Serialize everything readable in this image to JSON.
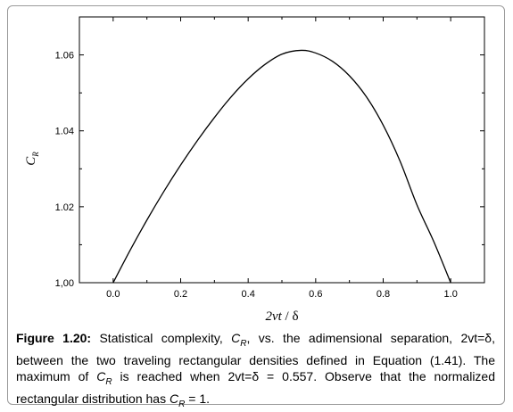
{
  "chart_data": {
    "type": "line",
    "title": "",
    "xlabel_main": "2vt",
    "xlabel_sep": " / ",
    "xlabel_delta": "δ",
    "ylabel_main": "C",
    "ylabel_sub": "R",
    "xlim": [
      -0.1,
      1.1
    ],
    "ylim": [
      1.0,
      1.07
    ],
    "x_ticks": [
      0.0,
      0.2,
      0.4,
      0.6,
      0.8,
      1.0
    ],
    "x_tick_labels": [
      "0.0",
      "0.2",
      "0.4",
      "0.6",
      "0.8",
      "1.0"
    ],
    "y_ticks": [
      1.0,
      1.02,
      1.04,
      1.06
    ],
    "y_tick_labels": [
      "1,00",
      "1.02",
      "1.04",
      "1.06"
    ],
    "grid": false,
    "legend": "none",
    "series": [
      {
        "color": "#000000",
        "x": [
          0.0,
          0.05,
          0.1,
          0.15,
          0.2,
          0.25,
          0.3,
          0.35,
          0.4,
          0.45,
          0.5,
          0.557,
          0.6,
          0.65,
          0.7,
          0.75,
          0.8,
          0.85,
          0.9,
          0.95,
          1.0
        ],
        "y": [
          1.0,
          1.0085,
          1.0165,
          1.024,
          1.031,
          1.0375,
          1.0435,
          1.049,
          1.0537,
          1.0575,
          1.0602,
          1.0612,
          1.0605,
          1.0583,
          1.0545,
          1.049,
          1.0415,
          1.032,
          1.0205,
          1.0108,
          1.0
        ]
      }
    ]
  },
  "caption": {
    "label": "Figure 1.20:",
    "text": " Statistical complexity, C_R, vs. the adimensional separation, 2vt=δ, between the two traveling rectangular densities defined in Equation (1.41). The maximum of C_R is reached when 2vt=δ = 0.557. Observe that the normalized rectangular distribution has C_R = 1."
  }
}
